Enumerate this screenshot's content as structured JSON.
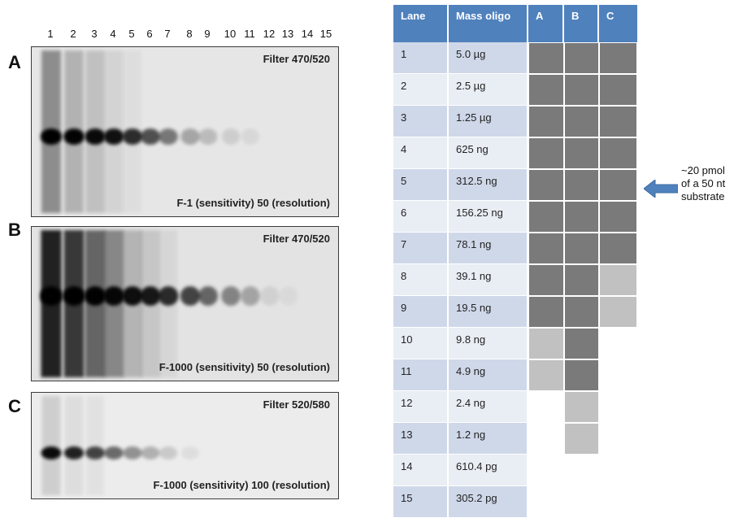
{
  "lane_numbers": [
    "1",
    "2",
    "3",
    "4",
    "5",
    "6",
    "7",
    "8",
    "9",
    "10",
    "11",
    "12",
    "13",
    "14",
    "15"
  ],
  "panels": [
    {
      "letter": "A",
      "filter": "Filter 470/520",
      "setting": "F-1 (sensitivity)  50 (resolution)"
    },
    {
      "letter": "B",
      "filter": "Filter 470/520",
      "setting": "F-1000 (sensitivity)  50 (resolution)"
    },
    {
      "letter": "C",
      "filter": "Filter 520/580",
      "setting": "F-1000 (sensitivity)  100 (resolution)"
    }
  ],
  "table": {
    "headers": [
      "Lane",
      "Mass oligo",
      "A",
      "B",
      "C"
    ],
    "rows": [
      {
        "lane": "1",
        "mass": "5.0 µg"
      },
      {
        "lane": "2",
        "mass": "2.5 µg"
      },
      {
        "lane": "3",
        "mass": "1.25 µg"
      },
      {
        "lane": "4",
        "mass": "625 ng"
      },
      {
        "lane": "5",
        "mass": "312.5 ng"
      },
      {
        "lane": "6",
        "mass": "156.25 ng"
      },
      {
        "lane": "7",
        "mass": "78.1 ng"
      },
      {
        "lane": "8",
        "mass": "39.1 ng"
      },
      {
        "lane": "9",
        "mass": "19.5 ng"
      },
      {
        "lane": "10",
        "mass": "9.8 ng"
      },
      {
        "lane": "11",
        "mass": "4.9 ng"
      },
      {
        "lane": "12",
        "mass": "2.4 ng"
      },
      {
        "lane": "13",
        "mass": "1.2 ng"
      },
      {
        "lane": "14",
        "mass": "610.4 pg"
      },
      {
        "lane": "15",
        "mass": "305.2 pg"
      }
    ],
    "detection": {
      "A": [
        "strong",
        "strong",
        "strong",
        "strong",
        "strong",
        "strong",
        "strong",
        "strong",
        "strong",
        "weak",
        "weak",
        "none",
        "none",
        "none",
        "none"
      ],
      "B": [
        "strong",
        "strong",
        "strong",
        "strong",
        "strong",
        "strong",
        "strong",
        "strong",
        "strong",
        "strong",
        "strong",
        "weak",
        "weak",
        "none",
        "none"
      ],
      "C": [
        "strong",
        "strong",
        "strong",
        "strong",
        "strong",
        "strong",
        "strong",
        "weak",
        "weak",
        "none",
        "none",
        "none",
        "none",
        "none",
        "none"
      ]
    }
  },
  "annotation": {
    "lines": [
      "~20 pmol",
      "of a 50 nt",
      "substrate"
    ],
    "arrow_color": "#4f81bd"
  },
  "colors": {
    "header": "#4f81bd",
    "row_dark": "#cfd8e9",
    "row_light": "#e9edf4",
    "strong": "#7a7a7a",
    "weak": "#c1c1c1"
  }
}
